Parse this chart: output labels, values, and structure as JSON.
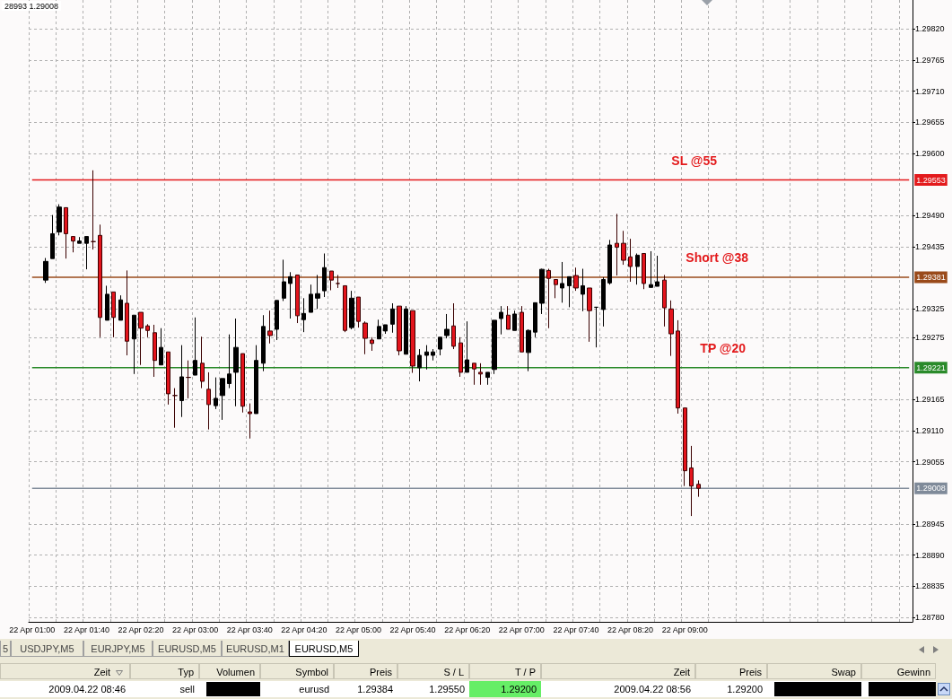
{
  "chart_data": [
    {
      "type": "candlestick",
      "categories": [
        "22 Apr 01:00",
        null,
        null,
        null,
        null,
        null,
        null,
        null,
        "22 Apr 01:40",
        null,
        null,
        null,
        null,
        null,
        null,
        null,
        "22 Apr 02:20",
        null,
        null,
        null,
        null,
        null,
        null,
        null,
        "22 Apr 03:00",
        null,
        null,
        null,
        null,
        null,
        null,
        null,
        "22 Apr 03:40",
        null,
        null,
        null,
        null,
        null,
        null,
        null,
        "22 Apr 04:20",
        null,
        null,
        null,
        null,
        null,
        null,
        null,
        "22 Apr 05:00",
        null,
        null,
        null,
        null,
        null,
        null,
        null,
        "22 Apr 05:40",
        null,
        null,
        null,
        null,
        null,
        null,
        null,
        "22 Apr 06:20",
        null,
        null,
        null,
        null,
        null,
        null,
        null,
        "22 Apr 07:00",
        null,
        null,
        null,
        null,
        null,
        null,
        null,
        "22 Apr 07:40",
        null,
        null,
        null,
        null,
        null,
        null,
        null,
        "22 Apr 08:20",
        null,
        null,
        null,
        null,
        null,
        null,
        null,
        "22 Apr 09:00",
        null,
        null,
        null,
        null,
        null,
        null,
        null,
        null,
        null,
        null,
        null,
        null,
        null,
        null,
        null,
        null,
        null,
        null,
        null,
        null,
        null,
        null,
        null,
        null,
        null,
        null,
        null,
        null,
        null,
        null,
        null,
        null,
        null
      ],
      "ohlc": [
        null,
        null,
        [
          1.29376,
          1.29415,
          1.29371,
          1.29409
        ],
        [
          1.29414,
          1.29491,
          1.29414,
          1.29458
        ],
        [
          1.29461,
          1.2951,
          1.29455,
          1.29505
        ],
        [
          1.29504,
          1.29504,
          1.29414,
          1.29458
        ],
        [
          1.29453,
          1.29453,
          1.29425,
          1.29445
        ],
        [
          1.29441,
          1.29452,
          1.29441,
          1.29445
        ],
        [
          1.29441,
          1.29453,
          1.29395,
          1.29453
        ],
        [
          1.29444,
          1.2957,
          1.2943,
          1.29444
        ],
        [
          1.29455,
          1.29474,
          1.29275,
          1.2931
        ],
        [
          1.29305,
          1.29366,
          1.29305,
          1.29351
        ],
        [
          1.29355,
          1.29355,
          1.29275,
          1.2931
        ],
        [
          1.29305,
          1.29349,
          1.29305,
          1.29341
        ],
        [
          1.29335,
          1.29393,
          1.29243,
          1.29268
        ],
        [
          1.29272,
          1.29314,
          1.2921,
          1.29314
        ],
        [
          1.29319,
          1.29319,
          1.29226,
          1.29291
        ],
        [
          1.29295,
          1.29298,
          1.29275,
          1.29287
        ],
        [
          1.29283,
          1.29297,
          1.29205,
          1.29234
        ],
        [
          1.29226,
          1.29291,
          1.29226,
          1.29257
        ],
        [
          1.29249,
          1.29249,
          1.29156,
          1.29175
        ],
        [
          1.29172,
          1.29185,
          1.29115,
          1.29172
        ],
        [
          1.29163,
          1.29261,
          1.29134,
          1.29205
        ],
        [
          1.29204,
          1.29234,
          1.29167,
          1.29204
        ],
        [
          1.29208,
          1.2931,
          1.29208,
          1.29234
        ],
        [
          1.29229,
          1.29276,
          1.29185,
          1.29197
        ],
        [
          1.29183,
          1.29213,
          1.29112,
          1.29156
        ],
        [
          1.29154,
          1.29204,
          1.29148,
          1.29167
        ],
        [
          1.29172,
          1.29202,
          1.29129,
          1.29202
        ],
        [
          1.29193,
          1.2928,
          1.29185,
          1.2921
        ],
        [
          1.29213,
          1.29308,
          1.29153,
          1.29257
        ],
        [
          1.29246,
          1.29246,
          1.29142,
          1.29153
        ],
        [
          1.29143,
          1.29158,
          1.29096,
          1.2914
        ],
        [
          1.2914,
          1.29261,
          1.2914,
          1.29234
        ],
        [
          1.29229,
          1.29314,
          1.29215,
          1.29294
        ],
        [
          1.29286,
          1.29322,
          1.29264,
          1.29278
        ],
        [
          1.29289,
          1.2934,
          1.2927,
          1.2934
        ],
        [
          1.29344,
          1.29412,
          1.29339,
          1.29373
        ],
        [
          1.2937,
          1.2939,
          1.29308,
          1.29382
        ],
        [
          1.29385,
          1.29385,
          1.293,
          1.29313
        ],
        [
          1.29306,
          1.29344,
          1.29284,
          1.29317
        ],
        [
          1.29319,
          1.29368,
          1.29319,
          1.29351
        ],
        [
          1.29344,
          1.29385,
          1.29325,
          1.29352
        ],
        [
          1.29357,
          1.29423,
          1.29346,
          1.29398
        ],
        [
          1.29392,
          1.29392,
          1.29358,
          1.29376
        ],
        [
          1.2937,
          1.29385,
          1.29362,
          1.2937
        ],
        [
          1.29366,
          1.29366,
          1.29284,
          1.29287
        ],
        [
          1.29292,
          1.29357,
          1.29289,
          1.29344
        ],
        [
          1.29346,
          1.29346,
          1.29292,
          1.29303
        ],
        [
          1.293,
          1.29303,
          1.29245,
          1.29273
        ],
        [
          1.2927,
          1.29275,
          1.29251,
          1.29264
        ],
        [
          1.29272,
          1.29306,
          1.29272,
          1.29294
        ],
        [
          1.29286,
          1.29297,
          1.29281,
          1.29297
        ],
        [
          1.29298,
          1.29335,
          1.29283,
          1.29325
        ],
        [
          1.2933,
          1.2933,
          1.29243,
          1.29251
        ],
        [
          1.29245,
          1.2933,
          1.29245,
          1.29325
        ],
        [
          1.29322,
          1.29322,
          1.29212,
          1.29224
        ],
        [
          1.29221,
          1.29254,
          1.29197,
          1.29243
        ],
        [
          1.29243,
          1.29261,
          1.29218,
          1.29249
        ],
        [
          1.29243,
          1.29254,
          1.29234,
          1.29249
        ],
        [
          1.29254,
          1.29275,
          1.29243,
          1.29275
        ],
        [
          1.29278,
          1.29316,
          1.29273,
          1.29289
        ],
        [
          1.29295,
          1.29335,
          1.29254,
          1.29259
        ],
        [
          1.29265,
          1.29275,
          1.29205,
          1.29213
        ],
        [
          1.29213,
          1.29303,
          1.29213,
          1.29235
        ],
        [
          1.29229,
          1.29229,
          1.29191,
          1.29219
        ],
        [
          1.29213,
          1.29229,
          1.29191,
          1.2921
        ],
        [
          1.29204,
          1.29213,
          1.29191,
          1.29213
        ],
        [
          1.29218,
          1.29305,
          1.2921,
          1.29305
        ],
        [
          1.29308,
          1.2933,
          1.2928,
          1.29319
        ],
        [
          1.29314,
          1.2933,
          1.29289,
          1.29289
        ],
        [
          1.29287,
          1.29322,
          1.29287,
          1.29316
        ],
        [
          1.29319,
          1.2933,
          1.29249,
          1.29249
        ],
        [
          1.29248,
          1.29289,
          1.29215,
          1.29287
        ],
        [
          1.29284,
          1.29336,
          1.29275,
          1.29336
        ],
        [
          1.29335,
          1.29396,
          1.29316,
          1.29395
        ],
        [
          1.29393,
          1.29396,
          1.29291,
          1.29379
        ],
        [
          1.29377,
          1.29377,
          1.29344,
          1.29368
        ],
        [
          1.29362,
          1.29408,
          1.29336,
          1.2937
        ],
        [
          1.29366,
          1.29382,
          1.29328,
          1.29382
        ],
        [
          1.29384,
          1.29398,
          1.29357,
          1.29362
        ],
        [
          1.29351,
          1.29396,
          1.29321,
          1.29366
        ],
        [
          1.29362,
          1.29362,
          1.29267,
          1.29322
        ],
        [
          1.29328,
          1.29328,
          1.29257,
          1.29328
        ],
        [
          1.29324,
          1.29381,
          1.29294,
          1.29377
        ],
        [
          1.29371,
          1.29447,
          1.29368,
          1.29438
        ],
        [
          1.29441,
          1.29493,
          1.29384,
          1.29434
        ],
        [
          1.29441,
          1.29463,
          1.29403,
          1.29411
        ],
        [
          1.29417,
          1.29449,
          1.29373,
          1.294
        ],
        [
          1.294,
          1.29423,
          1.29368,
          1.2942
        ],
        [
          1.29423,
          1.29423,
          1.2936,
          1.2937
        ],
        [
          1.29363,
          1.29427,
          1.29363,
          1.29368
        ],
        [
          1.29365,
          1.29419,
          1.29365,
          1.29373
        ],
        [
          1.29376,
          1.29385,
          1.29294,
          1.29327
        ],
        [
          1.29325,
          1.2934,
          1.29242,
          1.29281
        ],
        [
          1.29286,
          1.29305,
          1.2914,
          1.2915
        ],
        [
          1.2915,
          1.2915,
          1.29012,
          1.29039
        ],
        [
          1.29044,
          1.29083,
          1.28959,
          1.29012
        ],
        [
          1.29015,
          1.29022,
          1.28993,
          1.29008
        ],
        null,
        null,
        null,
        null,
        null,
        null,
        null,
        null,
        null,
        null,
        null,
        null,
        null,
        null,
        null,
        null,
        null,
        null,
        null,
        null,
        null,
        null,
        null,
        null,
        null,
        null,
        null,
        null,
        null,
        null,
        null
      ],
      "ylim": [
        1.28772,
        1.29871
      ],
      "yticks": [
        {
          "value": 1.2982,
          "label": "1.29820"
        },
        1.29765,
        {
          "value": 1.2971,
          "label": "1.29710"
        },
        1.29655,
        {
          "value": 1.296,
          "label": "1.29600"
        },
        {
          "value": 1.2949,
          "label": "1.29490"
        },
        1.29435,
        1.29325,
        1.29275,
        1.29165,
        {
          "value": 1.2911,
          "label": "1.29110"
        },
        1.29055,
        1.28945,
        {
          "value": 1.2889,
          "label": "1.28890"
        },
        1.28835,
        {
          "value": 1.2878,
          "label": "1.28780"
        }
      ],
      "grid": true,
      "ref_lines": [
        {
          "axis": "y",
          "value": 1.29553,
          "label": "1.29553",
          "color": "#e31a1c"
        },
        {
          "axis": "y",
          "value": 1.29381,
          "label": "1.29381",
          "color": "#9a4a1a"
        },
        {
          "axis": "y",
          "value": 1.29221,
          "label": "1.29221",
          "color": "#2a8a2a"
        },
        {
          "axis": "y",
          "value": 1.29008,
          "label": "1.29008",
          "color": "#7f8a99"
        }
      ],
      "annotations": [
        "28993 1.29008",
        "SL @55",
        "Short @38",
        "TP @20"
      ]
    },
    {
      "type": "other",
      "annotations": [
        "5",
        "USDJPY,M5",
        "EURJPY,M5",
        "EURUSD,M5",
        "EURUSD,M1",
        "EURUSD,M5"
      ],
      "categories": [
        "Zeit",
        "Typ",
        "Volumen",
        "Symbol",
        "Preis",
        "S / L",
        "T / P",
        "Zeit",
        "Preis",
        "Swap",
        "Gewinn"
      ],
      "cell_labels": [
        [
          "2009.04.22 08:46",
          "sell",
          null,
          "eurusd",
          "1.29384",
          "1.29550",
          "1.29200",
          "2009.04.22 08:56",
          "1.29200",
          null,
          null
        ]
      ]
    }
  ]
}
